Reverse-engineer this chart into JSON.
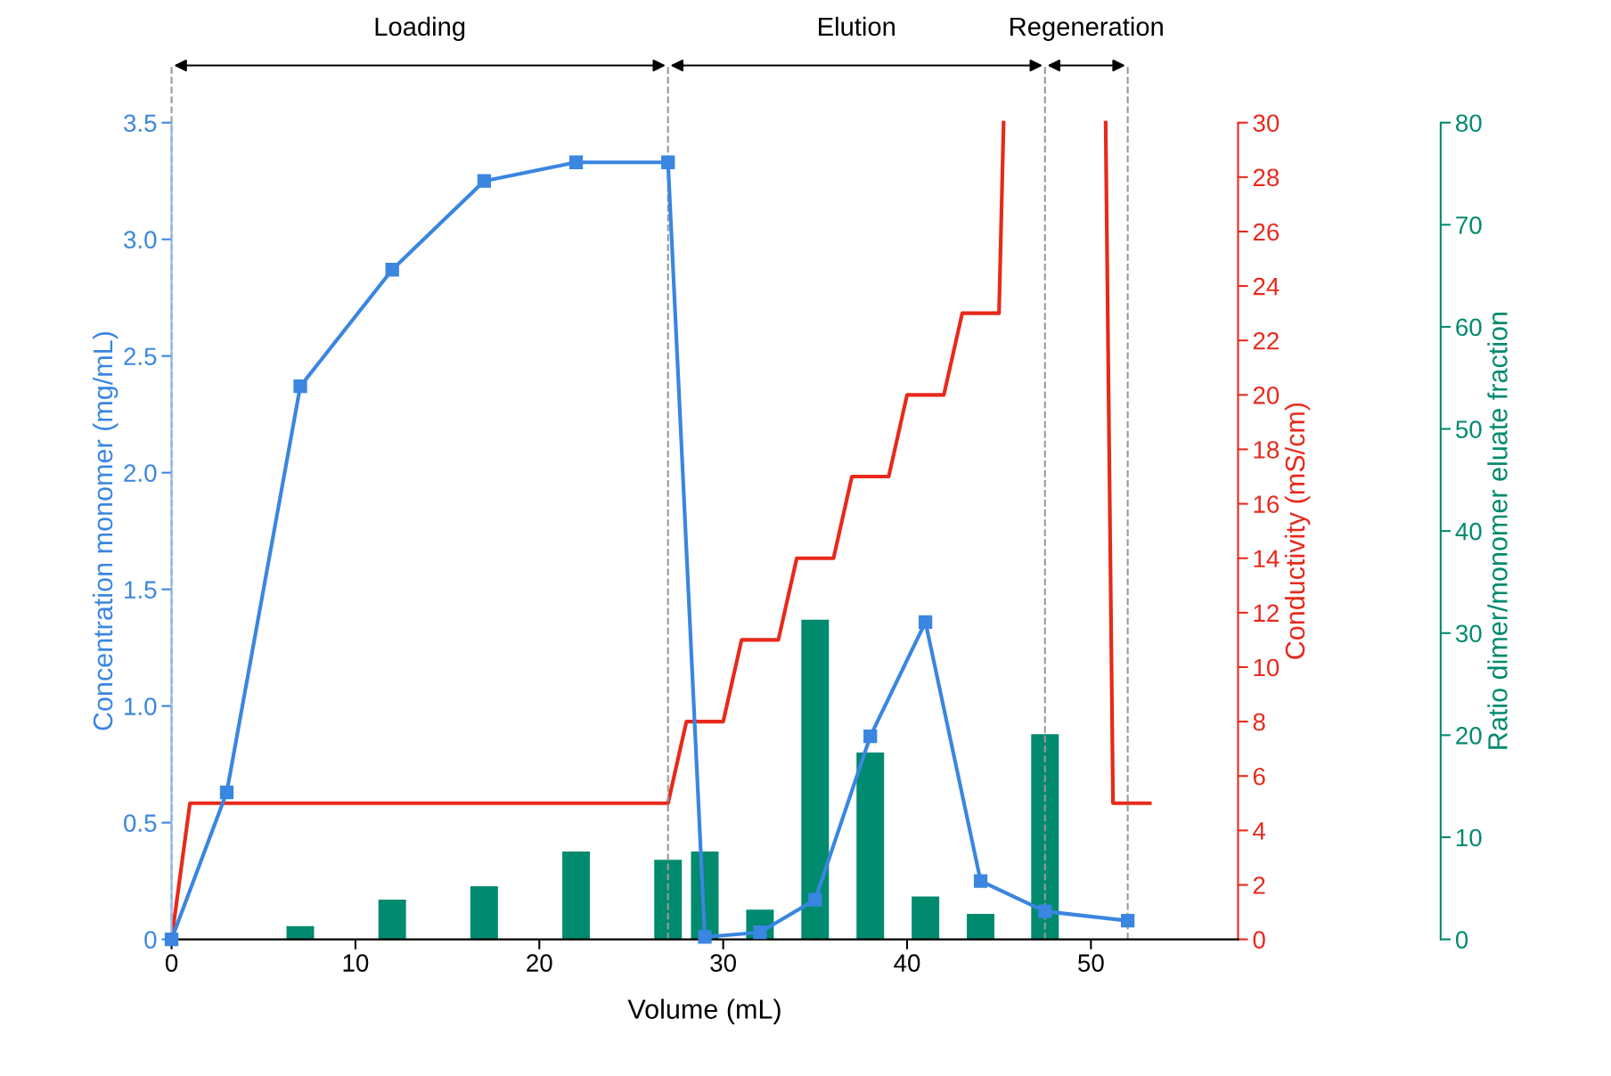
{
  "chart_data": {
    "type": "line",
    "xlabel": "Volume (mL)",
    "ylabel": "Concentration monomer (mg/mL)",
    "y2label": "Conductivity (mS/cm)",
    "y3label": "Ratio dimer/monomer eluate fraction",
    "xlim": [
      0,
      58
    ],
    "xticks": [
      0,
      10,
      20,
      30,
      40,
      50
    ],
    "ylim": [
      0,
      3.5
    ],
    "yticks": [
      0,
      0.5,
      {
        "value": 1,
        "label": "1.0"
      },
      1.5,
      {
        "value": 2,
        "label": "2.0"
      },
      2.5,
      {
        "value": 3,
        "label": "3.0"
      },
      3.5
    ],
    "y2lim": [
      0,
      30
    ],
    "y2ticks": [
      0,
      2,
      4,
      6,
      8,
      10,
      12,
      14,
      16,
      18,
      20,
      22,
      24,
      26,
      28,
      30
    ],
    "y3lim": [
      0,
      80
    ],
    "y3ticks": [
      0,
      10,
      20,
      30,
      40,
      50,
      60,
      70,
      80
    ],
    "grid": false,
    "series": [
      {
        "type": "bar",
        "axis": "y3",
        "color": "#008a6e",
        "x": [
          7,
          12,
          17,
          22,
          27,
          29,
          32,
          35,
          38,
          41,
          44,
          47.5
        ],
        "values": [
          1.3,
          3.9,
          5.2,
          8.6,
          7.8,
          8.6,
          2.9,
          31.3,
          18.3,
          4.2,
          2.5,
          20.1
        ]
      },
      {
        "type": "line",
        "axis": "y2",
        "color": "#e8291c",
        "marker": "none",
        "x": [
          0,
          1,
          27,
          28,
          30,
          31,
          33,
          34,
          36,
          37,
          39,
          40,
          42,
          43,
          45,
          45.25,
          48,
          50.8,
          51.2,
          53.2
        ],
        "values": [
          0,
          5,
          5,
          8,
          8,
          11,
          11,
          14,
          14,
          17,
          17,
          20,
          20,
          23,
          23,
          30,
          null,
          30,
          5,
          5
        ]
      },
      {
        "axis": "y",
        "color": "#3a86e0",
        "marker": "square",
        "x": [
          0,
          3,
          7,
          12,
          17,
          22,
          27,
          29,
          32,
          35,
          38,
          41,
          44,
          47.5,
          52
        ],
        "values": [
          0,
          0.63,
          2.37,
          2.87,
          3.25,
          3.33,
          3.33,
          0.01,
          0.03,
          0.17,
          0.87,
          1.36,
          0.25,
          0.12,
          0.08
        ]
      }
    ],
    "ref_lines": [
      {
        "axis": "x",
        "value": 0,
        "line_style": "dashed",
        "color": "#999999"
      },
      {
        "axis": "x",
        "value": 27,
        "line_style": "dashed",
        "color": "#999999"
      },
      {
        "axis": "x",
        "value": 47.5,
        "line_style": "dashed",
        "color": "#999999"
      },
      {
        "axis": "x",
        "value": 52,
        "line_style": "dashed",
        "color": "#999999"
      }
    ],
    "annotations": [
      "Loading",
      "Elution",
      "Regeneration"
    ]
  }
}
